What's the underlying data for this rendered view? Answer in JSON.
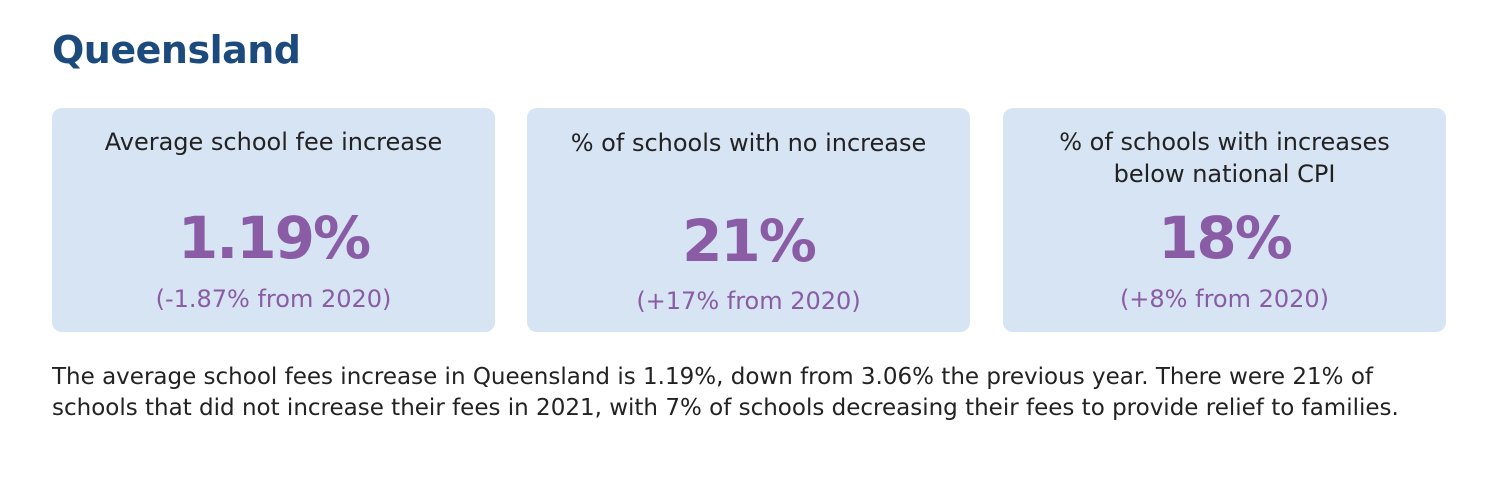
{
  "heading": "Queensland",
  "cards": [
    {
      "label": "Average school fee increase",
      "value": "1.19%",
      "delta": "(-1.87% from 2020)"
    },
    {
      "label": "% of schools with no increase",
      "value": "21%",
      "delta": "(+17% from 2020)"
    },
    {
      "label": "% of schools with increases below national CPI",
      "value": "18%",
      "delta": "(+8% from 2020)"
    }
  ],
  "body_text": "The average school fees increase in Queensland is 1.19%, down from 3.06% the previous year. There were 21% of schools that did not increase their fees in 2021, with 7% of schools decreasing their fees to provide relief to families.",
  "colors": {
    "heading": "#1d4a7d",
    "card_background": "#d6e4f3",
    "stat_accent": "#8a5ca5",
    "text": "#222222"
  }
}
